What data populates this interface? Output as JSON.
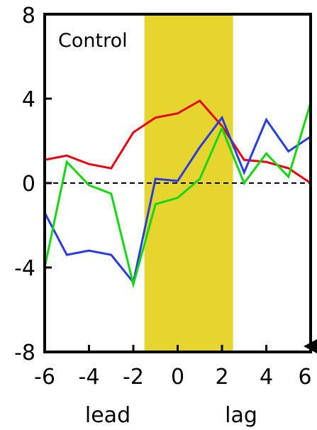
{
  "chart_data": {
    "type": "line",
    "title": "Control",
    "x_under_labels": [
      "lead",
      "lag"
    ],
    "xlim": [
      -6,
      6
    ],
    "ylim": [
      -8,
      8
    ],
    "xticks": [
      -6,
      -4,
      -2,
      0,
      2,
      4,
      6
    ],
    "yticks": [
      -8,
      -4,
      0,
      4,
      8
    ],
    "x_tick_labels": [
      "-6",
      "-4",
      "-2",
      "0",
      "2",
      "4",
      "6"
    ],
    "y_tick_labels": [
      "-8",
      "-4",
      "0",
      "4",
      "8"
    ],
    "shaded_band": {
      "x0": -1.5,
      "x1": 2.5,
      "color": "#e6d52f"
    },
    "zero_line": {
      "y": 0,
      "style": "dashed",
      "color": "#000000"
    },
    "x": [
      -6,
      -5,
      -4,
      -3,
      -2,
      -1,
      0,
      1,
      2,
      3,
      4,
      5,
      6
    ],
    "series": [
      {
        "color": "#e8000f",
        "values": [
          1.1,
          1.3,
          0.9,
          0.7,
          2.4,
          3.1,
          3.3,
          3.9,
          2.7,
          1.1,
          1.0,
          0.7,
          0.0
        ]
      },
      {
        "color": "#2a3be0",
        "values": [
          -1.4,
          -3.4,
          -3.2,
          -3.4,
          -4.7,
          0.2,
          0.1,
          1.7,
          3.1,
          0.5,
          3.0,
          1.5,
          2.2
        ]
      },
      {
        "color": "#12d80f",
        "values": [
          -4.0,
          1.0,
          -0.1,
          -0.5,
          -4.8,
          -1.0,
          -0.7,
          0.2,
          2.6,
          0.0,
          1.4,
          0.3,
          3.8
        ]
      }
    ],
    "grid": false
  }
}
